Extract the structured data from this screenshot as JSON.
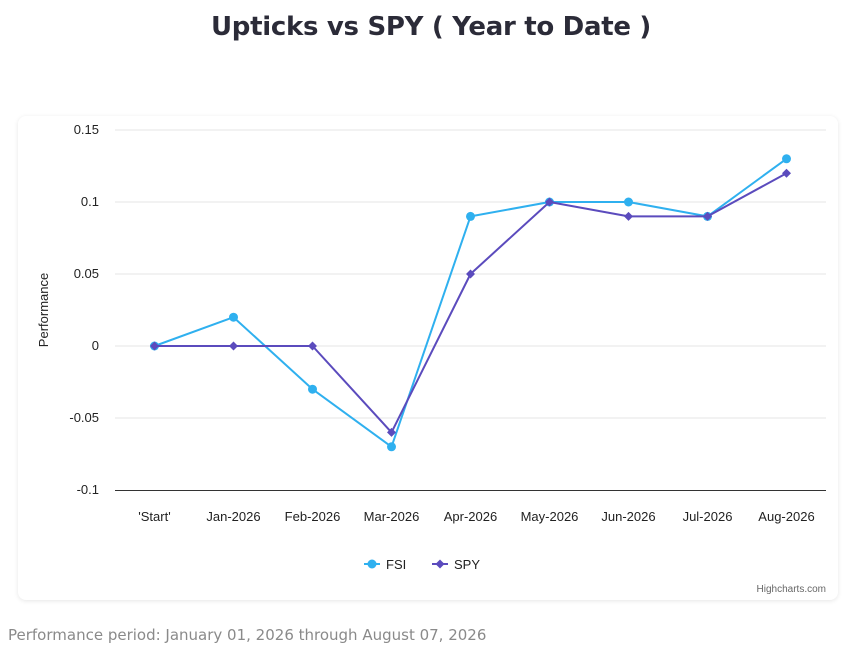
{
  "page": {
    "title": "Upticks vs SPY ( Year to Date )",
    "credits": "Highcharts.com",
    "footer_note": "Performance period: January 01, 2026 through August 07, 2026"
  },
  "chart_data": {
    "type": "line",
    "title": "Upticks vs SPY ( Year to Date )",
    "xlabel": "",
    "ylabel": "Performance",
    "categories": [
      "'Start'",
      "Jan-2026",
      "Feb-2026",
      "Mar-2026",
      "Apr-2026",
      "May-2026",
      "Jun-2026",
      "Jul-2026",
      "Aug-2026"
    ],
    "ylim": [
      -0.1,
      0.15
    ],
    "yticks": [
      0.15,
      0.1,
      0.05,
      0,
      -0.05,
      -0.1
    ],
    "ytick_labels": [
      "0.15",
      "0.1",
      "0.05",
      "0",
      "-0.05",
      "-0.1"
    ],
    "grid": true,
    "legend_position": "bottom-center",
    "series": [
      {
        "name": "FSI",
        "color": "#2fb0ef",
        "marker": "circle",
        "values": [
          0,
          0.02,
          -0.03,
          -0.07,
          0.09,
          0.1,
          0.1,
          0.09,
          0.13
        ]
      },
      {
        "name": "SPY",
        "color": "#5b4bbd",
        "marker": "diamond",
        "values": [
          0,
          0,
          0,
          -0.06,
          0.05,
          0.1,
          0.09,
          0.09,
          0.12
        ]
      }
    ]
  }
}
